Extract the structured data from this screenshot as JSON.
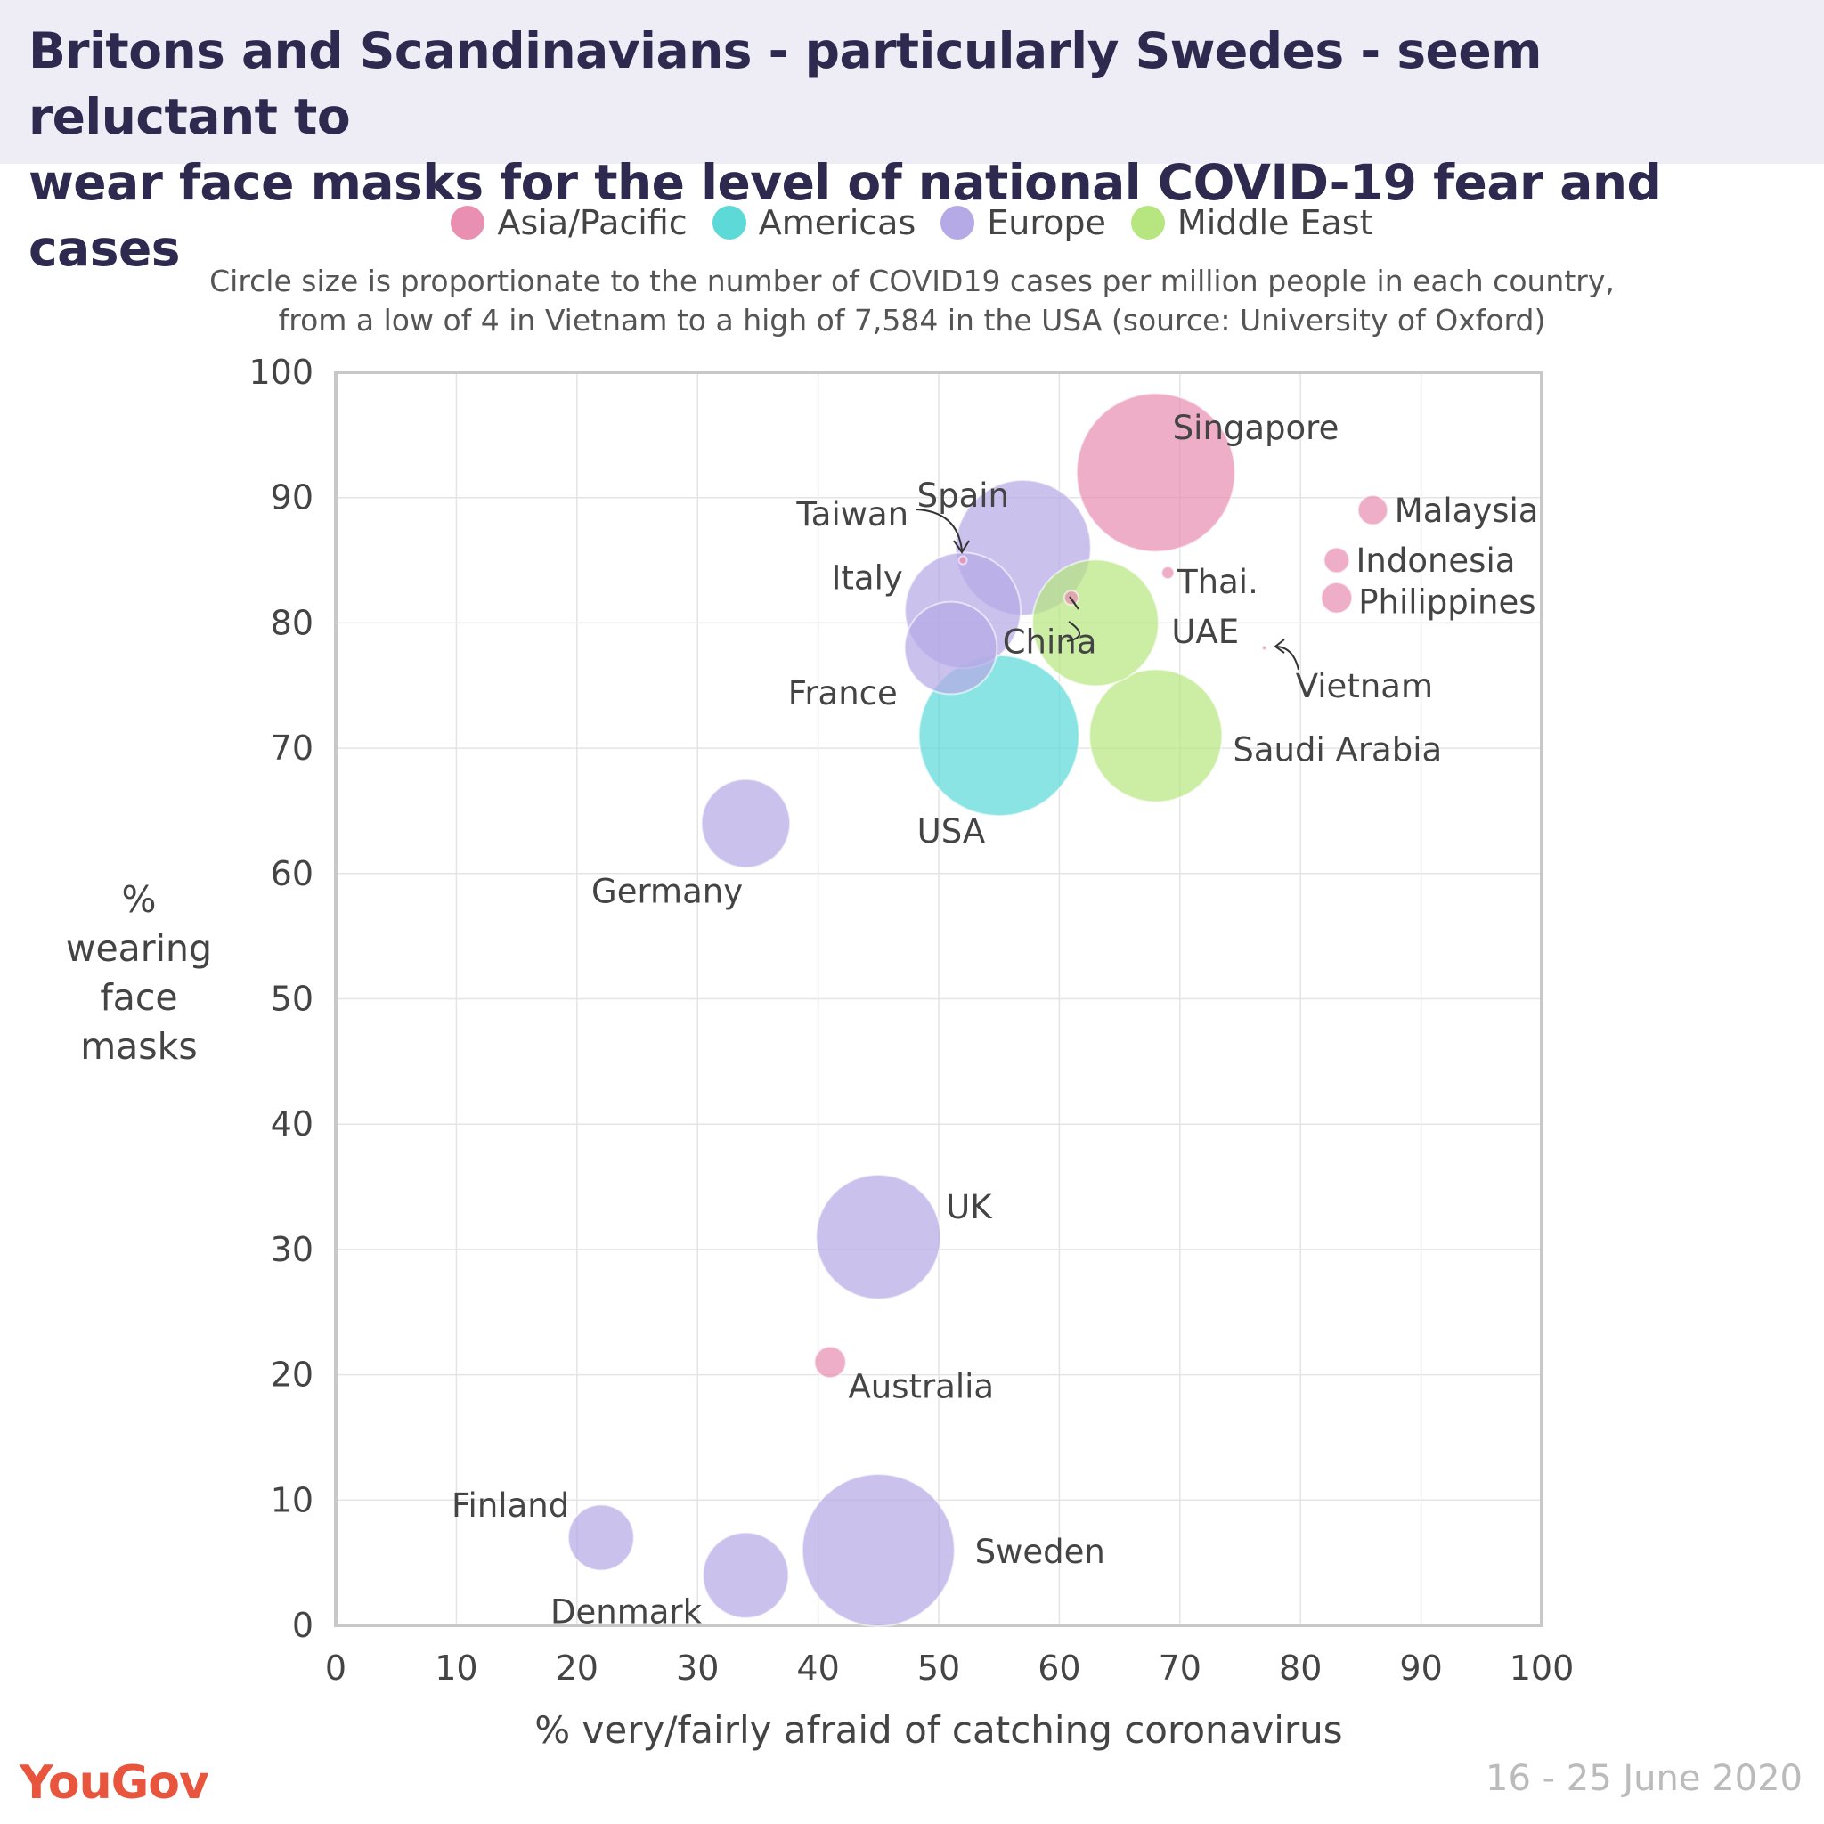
{
  "header": {
    "title_line1": "Britons and Scandinavians - particularly Swedes - seem reluctant to",
    "title_line2": "wear face masks for the level of national COVID-19 fear and cases"
  },
  "subtitle": {
    "line1": "Circle size is proportionate to the number of COVID19 cases per million people in each country,",
    "line2": "from a low of 4 in Vietnam to a high of 7,584 in the USA (source: University of Oxford)"
  },
  "legend": [
    {
      "label": "Asia/Pacific",
      "color": "#e98fb2"
    },
    {
      "label": "Americas",
      "color": "#5dd9d8"
    },
    {
      "label": "Europe",
      "color": "#b5a9e6"
    },
    {
      "label": "Middle East",
      "color": "#b7e681"
    }
  ],
  "footer": {
    "logo": "YouGov",
    "date": "16 - 25 June 2020"
  },
  "chart_data": {
    "type": "scatter",
    "variant": "bubble",
    "xlabel": "% very/fairly afraid of catching coronavirus",
    "ylabel": [
      "%",
      "wearing",
      "face",
      "masks"
    ],
    "xlim": [
      0,
      100
    ],
    "ylim": [
      0,
      100
    ],
    "xticks": [
      0,
      10,
      20,
      30,
      40,
      50,
      60,
      70,
      80,
      90,
      100
    ],
    "yticks": [
      0,
      10,
      20,
      30,
      40,
      50,
      60,
      70,
      80,
      90,
      100
    ],
    "grid": true,
    "size_measure": "COVID19 cases per million people",
    "points": [
      {
        "name": "Singapore",
        "region": "Asia/Pacific",
        "x": 68,
        "y": 92,
        "cases_per_million": 7400
      },
      {
        "name": "Malaysia",
        "region": "Asia/Pacific",
        "x": 86,
        "y": 89,
        "cases_per_million": 260
      },
      {
        "name": "Indonesia",
        "region": "Asia/Pacific",
        "x": 83,
        "y": 85,
        "cases_per_million": 190
      },
      {
        "name": "Philippines",
        "region": "Asia/Pacific",
        "x": 83,
        "y": 82,
        "cases_per_million": 280
      },
      {
        "name": "Thai.",
        "region": "Asia/Pacific",
        "x": 69,
        "y": 84,
        "cases_per_million": 45
      },
      {
        "name": "Taiwan",
        "region": "Asia/Pacific",
        "x": 52,
        "y": 85,
        "cases_per_million": 19
      },
      {
        "name": "China",
        "region": "Asia/Pacific",
        "x": 61,
        "y": 82,
        "cases_per_million": 60
      },
      {
        "name": "Vietnam",
        "region": "Asia/Pacific",
        "x": 77,
        "y": 78,
        "cases_per_million": 4
      },
      {
        "name": "Australia",
        "region": "Asia/Pacific",
        "x": 41,
        "y": 21,
        "cases_per_million": 290
      },
      {
        "name": "USA",
        "region": "Americas",
        "x": 55,
        "y": 71,
        "cases_per_million": 7584
      },
      {
        "name": "Spain",
        "region": "Europe",
        "x": 57,
        "y": 86,
        "cases_per_million": 5400
      },
      {
        "name": "Italy",
        "region": "Europe",
        "x": 52,
        "y": 81,
        "cases_per_million": 3950
      },
      {
        "name": "France",
        "region": "Europe",
        "x": 51,
        "y": 78,
        "cases_per_million": 2520
      },
      {
        "name": "Germany",
        "region": "Europe",
        "x": 34,
        "y": 64,
        "cases_per_million": 2310
      },
      {
        "name": "UK",
        "region": "Europe",
        "x": 45,
        "y": 31,
        "cases_per_million": 4570
      },
      {
        "name": "Sweden",
        "region": "Europe",
        "x": 45,
        "y": 6,
        "cases_per_million": 6840
      },
      {
        "name": "Denmark",
        "region": "Europe",
        "x": 34,
        "y": 4,
        "cases_per_million": 2160
      },
      {
        "name": "Finland",
        "region": "Europe",
        "x": 22,
        "y": 7,
        "cases_per_million": 1270
      },
      {
        "name": "UAE",
        "region": "Middle East",
        "x": 63,
        "y": 80,
        "cases_per_million": 4700
      },
      {
        "name": "Saudi Arabia",
        "region": "Middle East",
        "x": 68,
        "y": 71,
        "cases_per_million": 5200
      }
    ]
  }
}
